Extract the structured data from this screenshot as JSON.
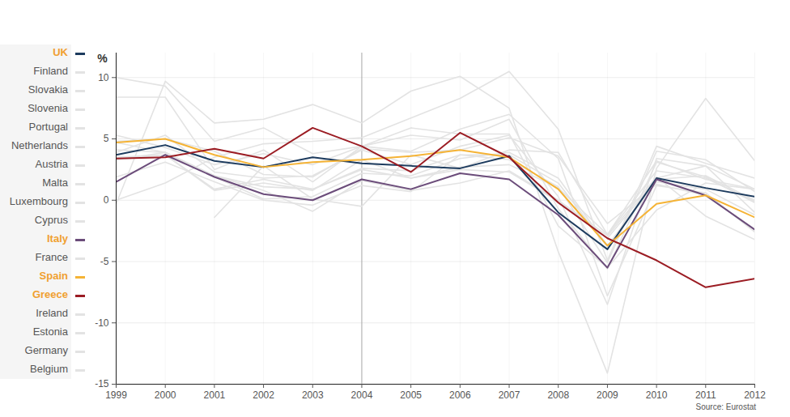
{
  "chart_data": {
    "type": "line",
    "y_label": "%",
    "caption": "Source: Eurostat",
    "x": [
      1999,
      2000,
      2001,
      2002,
      2003,
      2004,
      2005,
      2006,
      2007,
      2008,
      2009,
      2010,
      2011,
      2012
    ],
    "xlim": [
      1999,
      2012
    ],
    "xticks": [
      1999,
      2000,
      2001,
      2002,
      2003,
      2004,
      2005,
      2006,
      2007,
      2008,
      2009,
      2010,
      2011,
      2012
    ],
    "ylim": [
      -15,
      12
    ],
    "yticks": [
      -15,
      -10,
      -5,
      0,
      5,
      10
    ],
    "grid": true,
    "vertical_line": 2004,
    "series": [
      {
        "name": "UK",
        "color": "#1d3b5e",
        "values": [
          3.7,
          4.5,
          3.2,
          2.7,
          3.5,
          3.0,
          2.8,
          2.6,
          3.6,
          -1.0,
          -4.0,
          1.8,
          1.0,
          0.3
        ]
      },
      {
        "name": "Finland",
        "color": "#e3e3e3",
        "values": [
          3.9,
          5.3,
          2.3,
          1.8,
          2.0,
          4.1,
          2.9,
          4.4,
          5.3,
          0.3,
          -8.5,
          3.4,
          2.8,
          -1.0
        ]
      },
      {
        "name": "Slovakia",
        "color": "#e3e3e3",
        "values": [
          0.0,
          1.4,
          3.5,
          4.6,
          4.8,
          5.1,
          6.7,
          8.3,
          10.5,
          5.8,
          -4.9,
          4.4,
          3.0,
          1.8
        ]
      },
      {
        "name": "Slovenia",
        "color": "#e3e3e3",
        "values": [
          5.3,
          4.3,
          2.9,
          3.8,
          2.9,
          4.4,
          4.0,
          5.8,
          7.0,
          3.4,
          -7.8,
          1.2,
          0.6,
          -2.6
        ]
      },
      {
        "name": "Portugal",
        "color": "#e3e3e3",
        "values": [
          4.1,
          3.9,
          2.0,
          0.8,
          -0.9,
          1.6,
          0.8,
          1.4,
          2.4,
          0.0,
          -2.9,
          1.9,
          -1.3,
          -3.2
        ]
      },
      {
        "name": "Netherlands",
        "color": "#e3e3e3",
        "values": [
          4.7,
          3.9,
          1.9,
          0.1,
          0.3,
          2.2,
          2.0,
          3.4,
          3.9,
          1.8,
          -3.7,
          1.5,
          0.9,
          -1.2
        ]
      },
      {
        "name": "Austria",
        "color": "#e3e3e3",
        "values": [
          3.3,
          3.7,
          0.9,
          1.7,
          0.9,
          2.6,
          2.4,
          3.7,
          3.7,
          1.4,
          -3.8,
          1.8,
          2.8,
          0.9
        ]
      },
      {
        "name": "Malta",
        "color": "#e3e3e3",
        "values": [
          null,
          null,
          -1.4,
          2.8,
          0.1,
          -0.5,
          3.7,
          2.6,
          4.1,
          3.9,
          -2.8,
          3.2,
          1.7,
          0.9
        ]
      },
      {
        "name": "Luxembourg",
        "color": "#e3e3e3",
        "values": [
          8.4,
          8.4,
          2.5,
          4.1,
          1.5,
          4.4,
          5.3,
          4.9,
          6.6,
          -0.7,
          -5.6,
          3.1,
          1.9,
          -0.2
        ]
      },
      {
        "name": "Cyprus",
        "color": "#e3e3e3",
        "values": [
          4.8,
          5.0,
          4.0,
          2.1,
          1.9,
          4.2,
          3.9,
          4.1,
          5.1,
          3.6,
          -1.9,
          1.3,
          0.4,
          -2.4
        ]
      },
      {
        "name": "Italy",
        "color": "#6b4c7a",
        "values": [
          1.5,
          3.7,
          1.9,
          0.5,
          0.0,
          1.7,
          0.9,
          2.2,
          1.7,
          -1.2,
          -5.5,
          1.7,
          0.4,
          -2.4
        ]
      },
      {
        "name": "France",
        "color": "#e3e3e3",
        "values": [
          3.3,
          3.9,
          2.0,
          1.1,
          0.9,
          2.5,
          1.8,
          2.5,
          2.3,
          -0.1,
          -3.1,
          1.7,
          2.0,
          0.0
        ]
      },
      {
        "name": "Spain",
        "color": "#f5b335",
        "values": [
          4.7,
          5.0,
          3.7,
          2.7,
          3.1,
          3.3,
          3.6,
          4.1,
          3.5,
          0.9,
          -3.7,
          -0.3,
          0.4,
          -1.4
        ]
      },
      {
        "name": "Greece",
        "color": "#9b1c23",
        "values": [
          3.4,
          3.5,
          4.2,
          3.4,
          5.9,
          4.4,
          2.3,
          5.5,
          3.5,
          -0.2,
          -3.1,
          -4.9,
          -7.1,
          -6.4
        ]
      },
      {
        "name": "Ireland",
        "color": "#e3e3e3",
        "values": [
          10.0,
          9.3,
          4.8,
          5.9,
          3.8,
          4.4,
          5.9,
          5.4,
          5.4,
          -2.1,
          -5.5,
          -0.8,
          1.4,
          0.9
        ]
      },
      {
        "name": "Estonia",
        "color": "#e3e3e3",
        "values": [
          -0.3,
          9.7,
          6.3,
          6.6,
          7.8,
          6.3,
          8.9,
          10.1,
          7.5,
          -4.2,
          -14.1,
          2.6,
          8.3,
          3.2
        ]
      },
      {
        "name": "Germany",
        "color": "#e3e3e3",
        "values": [
          1.9,
          3.1,
          1.5,
          0.0,
          -0.4,
          1.2,
          0.7,
          3.7,
          3.3,
          1.1,
          -5.1,
          4.0,
          3.3,
          0.7
        ]
      },
      {
        "name": "Belgium",
        "color": "#e3e3e3",
        "values": [
          3.5,
          3.7,
          0.8,
          1.4,
          0.8,
          3.3,
          1.8,
          2.7,
          2.9,
          1.0,
          -2.8,
          2.4,
          1.8,
          -0.1
        ]
      }
    ]
  }
}
